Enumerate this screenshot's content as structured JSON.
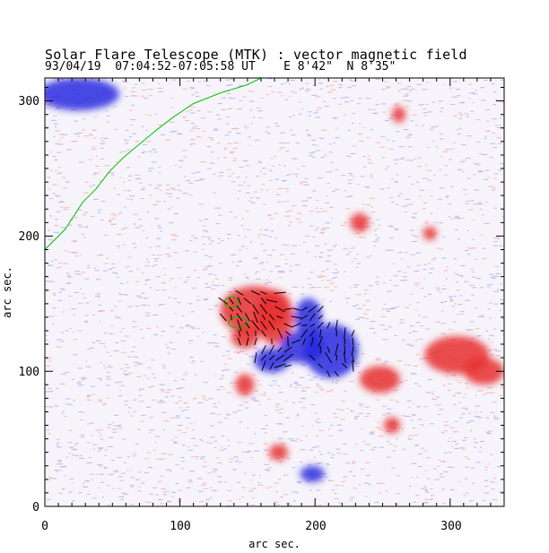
{
  "header": {
    "title": "Solar Flare Telescope (MTK) : vector magnetic field",
    "subtitle": "93/04/19  07:04:52-07:05:58 UT    E 8'42\"  N 8'35\""
  },
  "colors": {
    "positive": "#e83030",
    "negative": "#2828e0",
    "contour": "#00c000",
    "vector": "#000000",
    "frame": "#000000"
  },
  "chart_data": {
    "type": "heatmap",
    "title": "Solar Flare Telescope (MTK) : vector magnetic field",
    "subtitle": "93/04/19  07:04:52-07:05:58 UT    E 8'42\"  N 8'35\"",
    "xlabel": "arc sec.",
    "ylabel": "arc sec.",
    "xlim": [
      0,
      340
    ],
    "ylim": [
      0,
      317
    ],
    "xticks": [
      0,
      100,
      200,
      300
    ],
    "yticks": [
      0,
      100,
      200,
      300
    ],
    "legend": "none",
    "positive_regions": [
      {
        "name": "main-positive-spot",
        "cx": 155,
        "cy": 145,
        "rx": 25,
        "ry": 18
      },
      {
        "name": "positive-center-east",
        "cx": 170,
        "cy": 140,
        "rx": 14,
        "ry": 20
      },
      {
        "name": "positive-southern-tail",
        "cx": 148,
        "cy": 125,
        "rx": 10,
        "ry": 8
      },
      {
        "name": "positive-lower-left",
        "cx": 148,
        "cy": 90,
        "rx": 7,
        "ry": 8
      },
      {
        "name": "positive-east-cluster",
        "cx": 305,
        "cy": 112,
        "rx": 24,
        "ry": 14
      },
      {
        "name": "positive-east-extension",
        "cx": 325,
        "cy": 100,
        "rx": 15,
        "ry": 10
      },
      {
        "name": "positive-mid-east",
        "cx": 248,
        "cy": 94,
        "rx": 15,
        "ry": 10
      },
      {
        "name": "positive-far-east-small",
        "cx": 257,
        "cy": 60,
        "rx": 6,
        "ry": 6
      },
      {
        "name": "positive-south",
        "cx": 173,
        "cy": 40,
        "rx": 7,
        "ry": 6
      },
      {
        "name": "positive-north-east",
        "cx": 233,
        "cy": 210,
        "rx": 7,
        "ry": 7
      },
      {
        "name": "positive-north-far",
        "cx": 262,
        "cy": 290,
        "rx": 5,
        "ry": 6
      },
      {
        "name": "positive-north-mid",
        "cx": 285,
        "cy": 202,
        "rx": 5,
        "ry": 5
      }
    ],
    "negative_regions": [
      {
        "name": "main-negative-spot",
        "cx": 212,
        "cy": 115,
        "rx": 20,
        "ry": 20
      },
      {
        "name": "negative-west-lobe",
        "cx": 190,
        "cy": 118,
        "rx": 16,
        "ry": 12
      },
      {
        "name": "negative-south-west",
        "cx": 168,
        "cy": 108,
        "rx": 13,
        "ry": 9
      },
      {
        "name": "negative-bridge",
        "cx": 195,
        "cy": 140,
        "rx": 10,
        "ry": 14
      },
      {
        "name": "negative-south",
        "cx": 198,
        "cy": 24,
        "rx": 9,
        "ry": 6
      },
      {
        "name": "negative-north-west-limb",
        "cx": 25,
        "cy": 305,
        "rx": 30,
        "ry": 12
      }
    ],
    "contours": [
      {
        "name": "flare-contour-limb",
        "points": [
          [
            0,
            190
          ],
          [
            15,
            205
          ],
          [
            28,
            225
          ],
          [
            38,
            235
          ],
          [
            48,
            248
          ],
          [
            58,
            258
          ],
          [
            70,
            268
          ],
          [
            82,
            278
          ],
          [
            95,
            288
          ],
          [
            110,
            298
          ],
          [
            130,
            306
          ],
          [
            150,
            312
          ],
          [
            160,
            317
          ]
        ]
      },
      {
        "name": "flare-contour-spot",
        "cx": 143,
        "cy": 136,
        "rx": 7,
        "ry": 4
      },
      {
        "name": "flare-contour-spot2",
        "cx": 138,
        "cy": 151,
        "rx": 5,
        "ry": 4
      }
    ]
  }
}
